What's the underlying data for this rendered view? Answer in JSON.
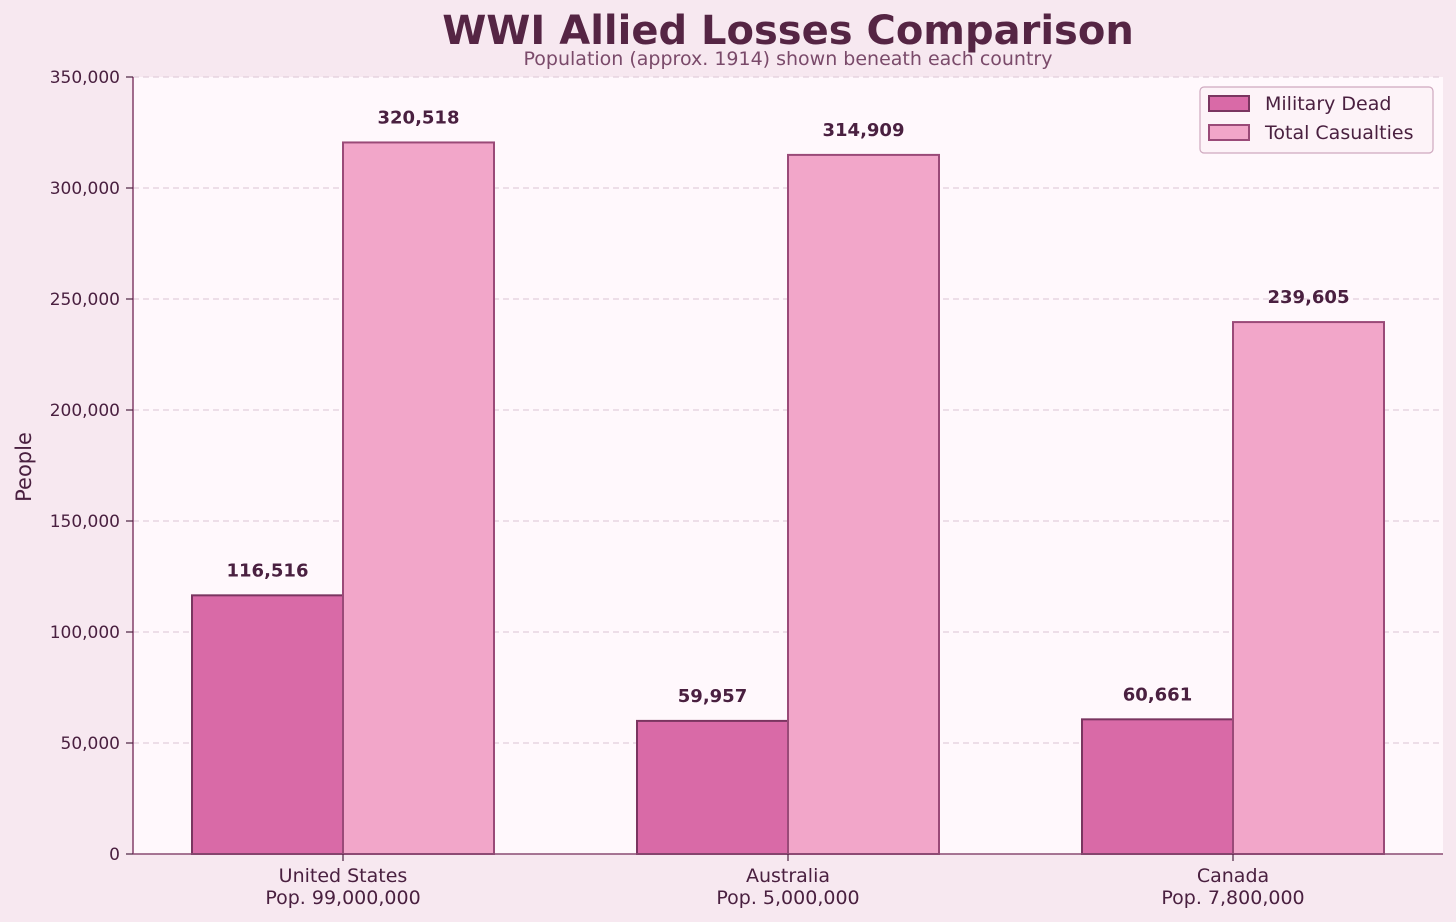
{
  "chart_data": {
    "type": "bar",
    "title": "WWI Allied Losses Comparison",
    "subtitle": "Population (approx. 1914) shown beneath each country",
    "ylabel": "People",
    "xlabel": "",
    "ylim": [
      0,
      350000
    ],
    "yticks": [
      0,
      50000,
      100000,
      150000,
      200000,
      250000,
      300000,
      350000
    ],
    "ytick_labels": [
      "0",
      "50,000",
      "100,000",
      "150,000",
      "200,000",
      "250,000",
      "300,000",
      "350,000"
    ],
    "categories": [
      "United States",
      "Australia",
      "Canada"
    ],
    "population_labels": [
      "Pop. 99,000,000",
      "Pop. 5,000,000",
      "Pop. 7,800,000"
    ],
    "series": [
      {
        "name": "Military Dead",
        "values": [
          116516,
          59957,
          60661
        ],
        "labels": [
          "116,516",
          "59,957",
          "60,661"
        ],
        "color": "#d96aa7",
        "edge": "#7a3560"
      },
      {
        "name": "Total Casualties",
        "values": [
          320518,
          314909,
          239605
        ],
        "labels": [
          "320,518",
          "314,909",
          "239,605"
        ],
        "color": "#f2a6c9",
        "edge": "#9a4a78"
      }
    ],
    "grid": true,
    "legend": "top-right",
    "colors": {
      "background": "#f7e8f0",
      "plot_background": "#fff8fc",
      "text": "#4a2040",
      "title": "#552544",
      "subtitle": "#7a4a6a",
      "grid": "#e2cfdb",
      "axis": "#8a4a72"
    }
  }
}
